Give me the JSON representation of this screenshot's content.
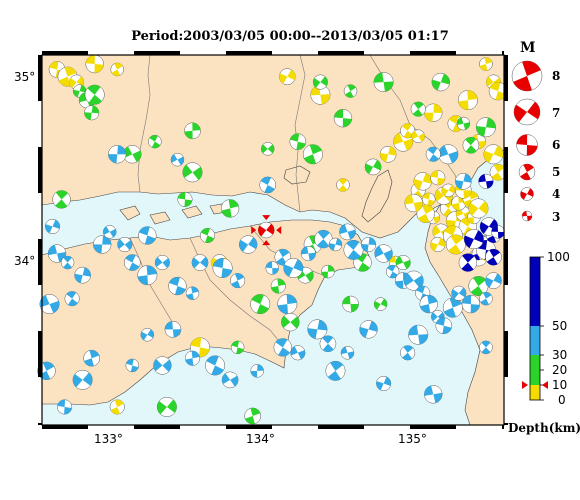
{
  "title": "Period:2003/03/05 00:00--2013/03/05 01:17",
  "axes": {
    "lat_labels": [
      "35°",
      "34°"
    ],
    "lon_labels": [
      "133°",
      "134°",
      "135°"
    ]
  },
  "magnitude_legend": {
    "header": "M",
    "labels": [
      "8",
      "7",
      "6",
      "5",
      "4",
      "3"
    ]
  },
  "depth_legend": {
    "labels": [
      "100",
      "50",
      "30",
      "20",
      "10",
      "0"
    ],
    "unit_label": "Depth(km)"
  },
  "colors": {
    "sea": "#e2f7fa",
    "land": "#fbe2c0",
    "coast": "#444444",
    "shallow": "#f5dc00",
    "mid": "#2ad42a",
    "deep1": "#33a9e6",
    "deep2": "#0000b8",
    "latest_event": "#e60000"
  },
  "map": {
    "lon_range": [
      132.55,
      135.62
    ],
    "lat_range": [
      33.05,
      35.1
    ]
  },
  "events": {
    "yellow": [
      [
        132.65,
        35.02
      ],
      [
        132.72,
        34.98
      ],
      [
        132.78,
        34.95
      ],
      [
        132.9,
        35.05
      ],
      [
        133.05,
        35.02
      ],
      [
        134.18,
        34.98
      ],
      [
        134.4,
        34.88
      ],
      [
        135.05,
        34.35
      ],
      [
        135.08,
        34.4
      ],
      [
        135.15,
        34.2
      ],
      [
        135.25,
        34.25
      ],
      [
        135.3,
        34.18
      ],
      [
        135.35,
        34.22
      ],
      [
        135.38,
        34.15
      ],
      [
        135.42,
        34.2
      ],
      [
        135.2,
        34.12
      ],
      [
        135.28,
        34.1
      ],
      [
        135.32,
        34.28
      ],
      [
        135.22,
        34.32
      ],
      [
        135.12,
        34.3
      ],
      [
        135.4,
        34.3
      ],
      [
        135.45,
        34.25
      ],
      [
        135.18,
        34.42
      ],
      [
        135.1,
        34.22
      ],
      [
        135.25,
        34.35
      ],
      [
        135.35,
        34.35
      ],
      [
        135.3,
        34.05
      ],
      [
        135.18,
        34.05
      ],
      [
        135.02,
        34.28
      ],
      [
        134.55,
        34.38
      ],
      [
        134.85,
        34.55
      ],
      [
        134.95,
        34.62
      ],
      [
        134.98,
        34.68
      ],
      [
        135.15,
        34.78
      ],
      [
        135.05,
        34.65
      ],
      [
        135.3,
        34.72
      ],
      [
        135.38,
        34.85
      ],
      [
        135.55,
        34.95
      ],
      [
        135.58,
        34.9
      ],
      [
        135.5,
        35.05
      ],
      [
        133.73,
        33.95
      ],
      [
        133.6,
        33.48
      ],
      [
        133.05,
        33.15
      ],
      [
        135.45,
        33.98
      ],
      [
        134.9,
        33.95
      ],
      [
        135.58,
        34.45
      ],
      [
        135.55,
        34.55
      ],
      [
        135.45,
        34.62
      ]
    ],
    "green": [
      [
        132.68,
        34.3
      ],
      [
        132.8,
        34.9
      ],
      [
        132.85,
        34.85
      ],
      [
        132.9,
        34.88
      ],
      [
        132.88,
        34.78
      ],
      [
        133.15,
        34.55
      ],
      [
        133.3,
        34.62
      ],
      [
        133.55,
        34.68
      ],
      [
        133.55,
        34.45
      ],
      [
        133.65,
        34.1
      ],
      [
        133.8,
        34.25
      ],
      [
        134.05,
        34.58
      ],
      [
        134.25,
        34.62
      ],
      [
        134.35,
        34.55
      ],
      [
        134.4,
        34.95
      ],
      [
        134.55,
        34.75
      ],
      [
        134.6,
        34.9
      ],
      [
        134.75,
        34.48
      ],
      [
        134.82,
        34.95
      ],
      [
        135.05,
        34.8
      ],
      [
        135.2,
        34.95
      ],
      [
        135.35,
        34.72
      ],
      [
        135.4,
        34.6
      ],
      [
        135.5,
        34.7
      ],
      [
        134.95,
        33.95
      ],
      [
        134.68,
        33.95
      ],
      [
        134.45,
        33.9
      ],
      [
        134.3,
        33.88
      ],
      [
        134.0,
        33.72
      ],
      [
        134.12,
        33.82
      ],
      [
        134.2,
        33.62
      ],
      [
        133.85,
        33.48
      ],
      [
        133.95,
        33.1
      ],
      [
        133.38,
        33.15
      ],
      [
        133.5,
        34.3
      ],
      [
        134.35,
        34.05
      ],
      [
        134.8,
        33.72
      ],
      [
        134.6,
        33.72
      ],
      [
        135.45,
        33.82
      ]
    ],
    "lightblue": [
      [
        132.62,
        34.15
      ],
      [
        132.65,
        34.0
      ],
      [
        132.72,
        33.95
      ],
      [
        132.82,
        33.88
      ],
      [
        132.6,
        33.72
      ],
      [
        132.75,
        33.75
      ],
      [
        132.95,
        34.05
      ],
      [
        133.0,
        34.12
      ],
      [
        133.15,
        33.95
      ],
      [
        133.25,
        33.88
      ],
      [
        133.35,
        33.95
      ],
      [
        133.45,
        33.82
      ],
      [
        133.55,
        33.78
      ],
      [
        133.6,
        33.95
      ],
      [
        133.75,
        33.92
      ],
      [
        133.85,
        33.85
      ],
      [
        133.92,
        34.05
      ],
      [
        134.08,
        33.92
      ],
      [
        134.15,
        33.98
      ],
      [
        134.22,
        33.92
      ],
      [
        134.32,
        34.0
      ],
      [
        134.42,
        34.08
      ],
      [
        134.5,
        34.05
      ],
      [
        134.58,
        34.12
      ],
      [
        134.62,
        34.02
      ],
      [
        134.72,
        34.05
      ],
      [
        134.82,
        34.0
      ],
      [
        134.88,
        33.9
      ],
      [
        134.95,
        33.85
      ],
      [
        135.02,
        33.85
      ],
      [
        135.08,
        33.78
      ],
      [
        135.12,
        33.72
      ],
      [
        135.18,
        33.65
      ],
      [
        135.22,
        33.6
      ],
      [
        135.28,
        33.7
      ],
      [
        135.32,
        33.78
      ],
      [
        135.4,
        33.72
      ],
      [
        135.5,
        33.75
      ],
      [
        135.55,
        33.85
      ],
      [
        135.05,
        33.55
      ],
      [
        134.98,
        33.45
      ],
      [
        134.72,
        33.58
      ],
      [
        134.58,
        33.45
      ],
      [
        134.45,
        33.5
      ],
      [
        134.38,
        33.58
      ],
      [
        134.25,
        33.45
      ],
      [
        134.15,
        33.48
      ],
      [
        133.98,
        33.35
      ],
      [
        133.8,
        33.3
      ],
      [
        133.7,
        33.38
      ],
      [
        133.55,
        33.42
      ],
      [
        133.35,
        33.38
      ],
      [
        133.15,
        33.38
      ],
      [
        132.88,
        33.42
      ],
      [
        132.82,
        33.3
      ],
      [
        132.7,
        33.15
      ],
      [
        132.58,
        33.35
      ],
      [
        133.25,
        33.55
      ],
      [
        133.42,
        33.58
      ],
      [
        134.5,
        33.35
      ],
      [
        134.82,
        33.28
      ],
      [
        135.15,
        33.22
      ],
      [
        135.5,
        33.48
      ],
      [
        135.35,
        34.4
      ],
      [
        135.25,
        34.55
      ],
      [
        135.15,
        34.55
      ],
      [
        133.05,
        34.55
      ],
      [
        133.45,
        34.52
      ],
      [
        134.05,
        34.38
      ],
      [
        134.18,
        33.72
      ],
      [
        133.1,
        34.05
      ],
      [
        133.25,
        34.1
      ]
    ],
    "darkblue": [
      [
        135.45,
        34.0
      ],
      [
        135.48,
        34.05
      ],
      [
        135.5,
        34.02
      ],
      [
        135.55,
        34.1
      ],
      [
        135.52,
        34.15
      ],
      [
        135.58,
        34.12
      ],
      [
        135.55,
        33.98
      ],
      [
        135.42,
        34.08
      ],
      [
        135.5,
        34.4
      ],
      [
        135.38,
        33.95
      ]
    ]
  },
  "latest_event": [
    134.04,
    34.13
  ]
}
